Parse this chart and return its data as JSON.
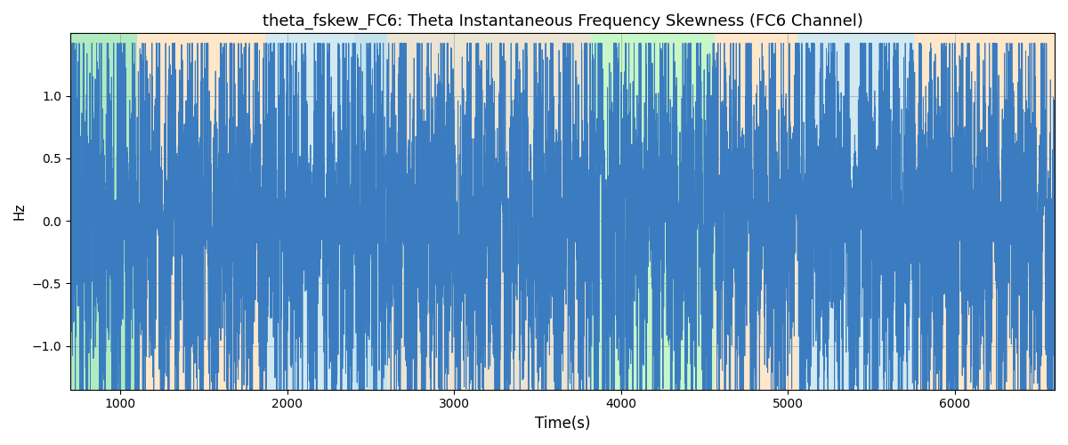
{
  "title": "theta_fskew_FC6: Theta Instantaneous Frequency Skewness (FC6 Channel)",
  "xlabel": "Time(s)",
  "ylabel": "Hz",
  "xlim": [
    700,
    6600
  ],
  "ylim": [
    -1.35,
    1.5
  ],
  "yticks": [
    -1.0,
    -0.5,
    0.0,
    0.5,
    1.0
  ],
  "xticks": [
    1000,
    2000,
    3000,
    4000,
    5000,
    6000
  ],
  "line_color": "#3a7cbf",
  "line_width": 0.7,
  "bg_bands": [
    {
      "xmin": 700,
      "xmax": 1100,
      "color": "#add8e6",
      "alpha": 0.55
    },
    {
      "xmin": 300,
      "xmax": 1100,
      "color": "#90ee90",
      "alpha": 0.5
    },
    {
      "xmin": 1100,
      "xmax": 1870,
      "color": "#ffd8a8",
      "alpha": 0.6
    },
    {
      "xmin": 1870,
      "xmax": 2600,
      "color": "#add8e6",
      "alpha": 0.55
    },
    {
      "xmin": 2400,
      "xmax": 3820,
      "color": "#add8e6",
      "alpha": 0.4
    },
    {
      "xmin": 2600,
      "xmax": 3820,
      "color": "#ffd8a8",
      "alpha": 0.45
    },
    {
      "xmin": 3820,
      "xmax": 4560,
      "color": "#90ee90",
      "alpha": 0.5
    },
    {
      "xmin": 4560,
      "xmax": 5060,
      "color": "#ffd8a8",
      "alpha": 0.6
    },
    {
      "xmin": 5060,
      "xmax": 5760,
      "color": "#add8e6",
      "alpha": 0.55
    },
    {
      "xmin": 5760,
      "xmax": 6600,
      "color": "#ffd8a8",
      "alpha": 0.6
    }
  ],
  "seed": 7,
  "n_points": 11800,
  "x_start": 700,
  "x_end": 6600,
  "figsize": [
    12.0,
    5.0
  ],
  "dpi": 100,
  "spike_prob": 0.15,
  "spike_amp": 1.25
}
